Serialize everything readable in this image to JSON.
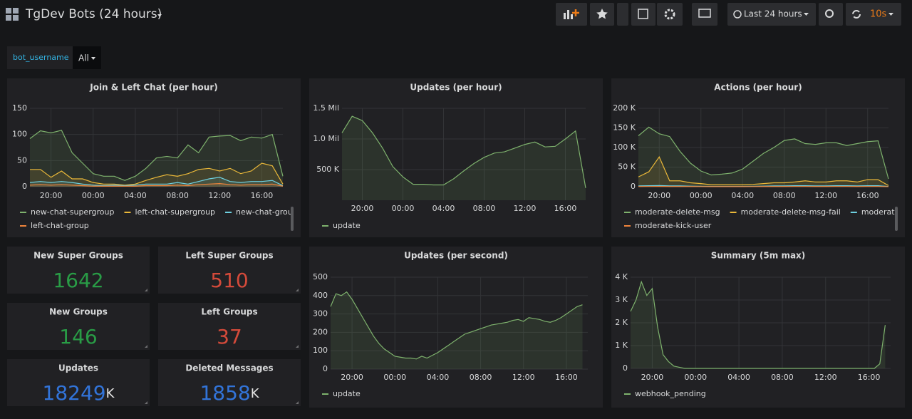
{
  "header": {
    "title": "TgDev Bots (24 hours)",
    "time_range": "Last 24 hours",
    "refresh": "10s"
  },
  "variable": {
    "label": "bot_username",
    "value": "All"
  },
  "chart_data": [
    {
      "type": "line",
      "title": "Join & Left Chat (per hour)",
      "legend": "bottom",
      "x": [
        0,
        1,
        2,
        3,
        4,
        5,
        6,
        7,
        8,
        9,
        10,
        11,
        12,
        13,
        14,
        15,
        16,
        17,
        18,
        19,
        20,
        21,
        22,
        23,
        24
      ],
      "xlim": [
        0,
        24
      ],
      "xticks": [
        {
          "value": 2,
          "label": "20:00"
        },
        {
          "value": 6,
          "label": "00:00"
        },
        {
          "value": 10,
          "label": "04:00"
        },
        {
          "value": 14,
          "label": "08:00"
        },
        {
          "value": 18,
          "label": "12:00"
        },
        {
          "value": 22,
          "label": "16:00"
        }
      ],
      "ylim": [
        0,
        150
      ],
      "yticks": [
        0,
        50,
        100,
        150
      ],
      "series": [
        {
          "name": "new-chat-supergroup",
          "color": "#7eb26d",
          "values": [
            92,
            107,
            103,
            108,
            65,
            45,
            25,
            20,
            20,
            12,
            20,
            35,
            55,
            58,
            55,
            80,
            65,
            95,
            97,
            98,
            88,
            95,
            93,
            100,
            20
          ]
        },
        {
          "name": "left-chat-supergroup",
          "color": "#eab839",
          "values": [
            33,
            33,
            18,
            30,
            15,
            15,
            8,
            5,
            5,
            3,
            5,
            12,
            18,
            23,
            20,
            25,
            33,
            35,
            30,
            35,
            25,
            30,
            45,
            40,
            5
          ]
        },
        {
          "name": "new-chat-group",
          "color": "#6ed0e0",
          "values": [
            8,
            10,
            8,
            10,
            8,
            5,
            3,
            2,
            3,
            2,
            3,
            5,
            5,
            5,
            8,
            5,
            10,
            15,
            18,
            10,
            8,
            10,
            10,
            12,
            2
          ]
        },
        {
          "name": "left-chat-group",
          "color": "#ef843c",
          "values": [
            3,
            4,
            3,
            4,
            3,
            2,
            1,
            1,
            1,
            1,
            1,
            2,
            2,
            2,
            3,
            2,
            4,
            5,
            6,
            4,
            3,
            4,
            4,
            5,
            1
          ]
        }
      ]
    },
    {
      "type": "line",
      "title": "Updates (per hour)",
      "legend": "bottom",
      "x": [
        0,
        1,
        2,
        3,
        4,
        5,
        6,
        7,
        8,
        9,
        10,
        11,
        12,
        13,
        14,
        15,
        16,
        17,
        18,
        19,
        20,
        21,
        22,
        23,
        24
      ],
      "xlim": [
        0,
        24
      ],
      "xticks": [
        {
          "value": 2,
          "label": "20:00"
        },
        {
          "value": 6,
          "label": "00:00"
        },
        {
          "value": 10,
          "label": "04:00"
        },
        {
          "value": 14,
          "label": "08:00"
        },
        {
          "value": 18,
          "label": "12:00"
        },
        {
          "value": 22,
          "label": "16:00"
        }
      ],
      "ylim": [
        0,
        1500000
      ],
      "yticks": [
        {
          "value": 500000,
          "label": "500 K"
        },
        {
          "value": 1000000,
          "label": "1.0 Mil"
        },
        {
          "value": 1500000,
          "label": "1.5 Mil"
        }
      ],
      "series": [
        {
          "name": "update",
          "color": "#7eb26d",
          "values": [
            1100000,
            1370000,
            1300000,
            1100000,
            850000,
            550000,
            380000,
            260000,
            260000,
            250000,
            250000,
            350000,
            480000,
            600000,
            700000,
            770000,
            790000,
            850000,
            910000,
            950000,
            870000,
            880000,
            1000000,
            1130000,
            200000
          ]
        }
      ]
    },
    {
      "type": "line",
      "title": "Actions (per hour)",
      "legend": "bottom",
      "x": [
        0,
        1,
        2,
        3,
        4,
        5,
        6,
        7,
        8,
        9,
        10,
        11,
        12,
        13,
        14,
        15,
        16,
        17,
        18,
        19,
        20,
        21,
        22,
        23,
        24
      ],
      "xlim": [
        0,
        24
      ],
      "xticks": [
        {
          "value": 2,
          "label": "20:00"
        },
        {
          "value": 6,
          "label": "00:00"
        },
        {
          "value": 10,
          "label": "04:00"
        },
        {
          "value": 14,
          "label": "08:00"
        },
        {
          "value": 18,
          "label": "12:00"
        },
        {
          "value": 22,
          "label": "16:00"
        }
      ],
      "ylim": [
        0,
        200000
      ],
      "yticks": [
        0,
        {
          "value": 50000,
          "label": "50 K"
        },
        {
          "value": 100000,
          "label": "100 K"
        },
        {
          "value": 150000,
          "label": "150 K"
        },
        {
          "value": 200000,
          "label": "200 K"
        }
      ],
      "series": [
        {
          "name": "moderate-delete-msg",
          "color": "#7eb26d",
          "values": [
            130000,
            152000,
            135000,
            128000,
            90000,
            60000,
            40000,
            30000,
            32000,
            35000,
            45000,
            65000,
            85000,
            100000,
            118000,
            122000,
            110000,
            108000,
            112000,
            112000,
            105000,
            110000,
            115000,
            117000,
            20000
          ]
        },
        {
          "name": "moderate-delete-msg-fail",
          "color": "#eab839",
          "values": [
            25000,
            38000,
            76000,
            15000,
            15000,
            10000,
            8000,
            5000,
            5000,
            5000,
            5000,
            6000,
            8000,
            10000,
            10000,
            12000,
            15000,
            12000,
            12000,
            15000,
            15000,
            12000,
            18000,
            18000,
            3000
          ]
        },
        {
          "name": "moderate-ban-user",
          "color": "#6ed0e0",
          "values": [
            2000,
            2500,
            3000,
            2000,
            2000,
            1500,
            1000,
            800,
            800,
            800,
            800,
            1000,
            1500,
            2000,
            2000,
            2500,
            2500,
            2000,
            2000,
            2500,
            2500,
            2000,
            2500,
            2500,
            500
          ]
        },
        {
          "name": "moderate-kick-user",
          "color": "#ef843c",
          "values": [
            500,
            600,
            700,
            500,
            500,
            400,
            300,
            200,
            200,
            200,
            200,
            300,
            400,
            500,
            500,
            600,
            600,
            500,
            500,
            600,
            600,
            500,
            600,
            600,
            100
          ]
        }
      ]
    },
    {
      "type": "line",
      "title": "Updates (per second)",
      "legend": "bottom",
      "x": [
        0,
        0.5,
        1,
        1.5,
        2,
        2.5,
        3,
        3.5,
        4,
        4.5,
        5,
        5.5,
        6,
        6.5,
        7,
        7.5,
        8,
        8.5,
        9,
        9.5,
        10,
        10.5,
        11,
        11.5,
        12,
        12.5,
        13,
        13.5,
        14,
        14.5,
        15,
        15.5,
        16,
        16.5,
        17,
        17.5,
        18,
        18.5,
        19,
        19.5,
        20,
        20.5,
        21,
        21.5,
        22,
        22.5,
        23,
        23.5
      ],
      "xlim": [
        0,
        24
      ],
      "xticks": [
        {
          "value": 2,
          "label": "20:00"
        },
        {
          "value": 6,
          "label": "00:00"
        },
        {
          "value": 10,
          "label": "04:00"
        },
        {
          "value": 14,
          "label": "08:00"
        },
        {
          "value": 18,
          "label": "12:00"
        },
        {
          "value": 22,
          "label": "16:00"
        }
      ],
      "ylim": [
        0,
        500
      ],
      "yticks": [
        0,
        100,
        200,
        300,
        400,
        500
      ],
      "series": [
        {
          "name": "update",
          "color": "#7eb26d",
          "values": [
            340,
            410,
            400,
            420,
            380,
            330,
            280,
            230,
            180,
            140,
            110,
            90,
            70,
            65,
            60,
            60,
            55,
            70,
            60,
            75,
            90,
            110,
            130,
            150,
            170,
            190,
            200,
            210,
            220,
            230,
            240,
            245,
            250,
            255,
            265,
            270,
            260,
            280,
            275,
            270,
            260,
            255,
            265,
            280,
            300,
            320,
            340,
            350
          ]
        }
      ]
    },
    {
      "type": "line",
      "title": "Summary (5m max)",
      "legend": "bottom",
      "x": [
        0,
        0.5,
        1,
        1.5,
        2,
        2.5,
        3,
        3.5,
        4,
        4.5,
        5,
        5.5,
        6,
        6.5,
        7,
        7.5,
        8,
        8.5,
        9,
        9.5,
        10,
        10.5,
        11,
        11.5,
        12,
        12.5,
        13,
        13.5,
        14,
        14.5,
        15,
        15.5,
        16,
        16.5,
        17,
        17.5,
        18,
        18.5,
        19,
        19.5,
        20,
        20.5,
        21,
        21.5,
        22,
        22.5,
        23,
        23.5
      ],
      "xlim": [
        0,
        24
      ],
      "xticks": [
        {
          "value": 2,
          "label": "20:00"
        },
        {
          "value": 6,
          "label": "00:00"
        },
        {
          "value": 10,
          "label": "04:00"
        },
        {
          "value": 14,
          "label": "08:00"
        },
        {
          "value": 18,
          "label": "12:00"
        },
        {
          "value": 22,
          "label": "16:00"
        }
      ],
      "ylim": [
        0,
        4000
      ],
      "yticks": [
        0,
        {
          "value": 1000,
          "label": "1 K"
        },
        {
          "value": 2000,
          "label": "2 K"
        },
        {
          "value": 3000,
          "label": "3 K"
        },
        {
          "value": 4000,
          "label": "4 K"
        }
      ],
      "series": [
        {
          "name": "webhook_pending",
          "color": "#7eb26d",
          "values": [
            2500,
            3000,
            3800,
            3200,
            3500,
            1800,
            600,
            300,
            100,
            50,
            0,
            0,
            0,
            0,
            0,
            0,
            0,
            0,
            0,
            0,
            0,
            0,
            0,
            0,
            0,
            0,
            0,
            0,
            0,
            0,
            0,
            0,
            0,
            0,
            0,
            0,
            0,
            0,
            0,
            0,
            0,
            0,
            0,
            0,
            0,
            0,
            200,
            1900
          ]
        }
      ]
    }
  ],
  "stats": [
    {
      "title": "New Super Groups",
      "value": "1642",
      "color": "#299c46"
    },
    {
      "title": "Left Super Groups",
      "value": "510",
      "color": "#d44a3a"
    },
    {
      "title": "New Groups",
      "value": "146",
      "color": "#299c46"
    },
    {
      "title": "Left Groups",
      "value": "37",
      "color": "#d44a3a"
    },
    {
      "title": "Updates",
      "value": "18249",
      "unit": "K",
      "color": "#3274d9"
    },
    {
      "title": "Deleted Messages",
      "value": "1858",
      "unit": "K",
      "color": "#3274d9"
    }
  ]
}
